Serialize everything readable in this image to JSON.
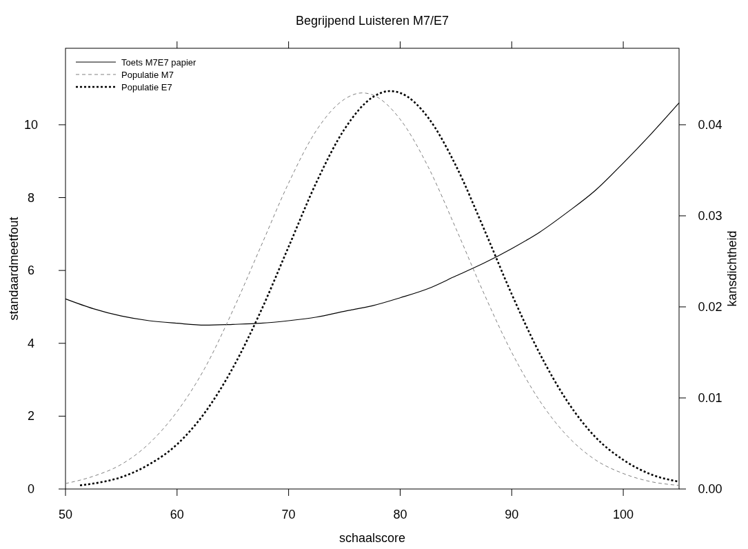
{
  "chart_data": {
    "type": "line",
    "title": "Begrijpend Luisteren M7/E7",
    "xlabel": "schaalscore",
    "ylabel": "standaardmeetfout",
    "y2label": "kansdichtheid",
    "xlim": [
      50,
      105
    ],
    "xticks": [
      50,
      60,
      70,
      80,
      90,
      100
    ],
    "ylim": [
      0,
      12.1
    ],
    "yticks": [
      0,
      2,
      4,
      6,
      8,
      10
    ],
    "y2lim": [
      0,
      0.0484
    ],
    "y2ticks": [
      {
        "value": 0,
        "label": "0.00"
      },
      {
        "value": 0.01,
        "label": "0.01"
      },
      {
        "value": 0.02,
        "label": "0.02"
      },
      {
        "value": 0.03,
        "label": "0.03"
      },
      {
        "value": 0.04,
        "label": "0.04"
      }
    ],
    "legend": "top left",
    "grid": false,
    "marker": "none",
    "series": [
      {
        "name": "Toets M7E7 papier",
        "color": "#000000",
        "line_style": "solid",
        "x": [
          50,
          52.5,
          55,
          57.5,
          60,
          62.5,
          65,
          67.5,
          70,
          72.5,
          75,
          77.5,
          80,
          82.5,
          85,
          87.5,
          90,
          92.5,
          95,
          97.5,
          100,
          102.5,
          105
        ],
        "values": [
          5.22,
          4.95,
          4.75,
          4.62,
          4.55,
          4.5,
          4.52,
          4.55,
          4.62,
          4.72,
          4.88,
          5.03,
          5.25,
          5.5,
          5.85,
          6.2,
          6.6,
          7.05,
          7.6,
          8.2,
          8.95,
          9.75,
          10.6
        ]
      },
      {
        "name": "Populatie M7",
        "color": "#808080",
        "line_style": "dashed",
        "axis": "y2",
        "x": [
          50,
          52.5,
          55,
          57.5,
          60,
          62.5,
          65,
          67.5,
          70,
          72.5,
          75,
          76.6,
          77.5,
          80,
          82.5,
          85,
          87.5,
          90,
          92.5,
          95,
          97.5,
          100,
          102.5,
          105
        ],
        "values": [
          0.0006,
          0.0014,
          0.0027,
          0.005,
          0.0085,
          0.0133,
          0.0196,
          0.0266,
          0.0336,
          0.0394,
          0.0428,
          0.0435,
          0.0433,
          0.0406,
          0.0354,
          0.0286,
          0.0215,
          0.015,
          0.0097,
          0.0058,
          0.0032,
          0.0017,
          0.0008,
          0.0004
        ]
      },
      {
        "name": "Populatie E7",
        "color": "#000000",
        "line_style": "dotted",
        "axis": "y2",
        "x": [
          51.3,
          52.5,
          55,
          57.5,
          60,
          62.5,
          65,
          67.5,
          70,
          72.5,
          75,
          77.5,
          79.1,
          80,
          82.5,
          85,
          87.5,
          90,
          92.5,
          95,
          97.5,
          100,
          102.5,
          105
        ],
        "values": [
          0.0004,
          0.0006,
          0.0013,
          0.0027,
          0.0049,
          0.0084,
          0.0133,
          0.0195,
          0.0266,
          0.0337,
          0.0395,
          0.043,
          0.0437,
          0.0435,
          0.0408,
          0.0355,
          0.0286,
          0.0214,
          0.0149,
          0.0096,
          0.0057,
          0.0032,
          0.0016,
          0.0008
        ]
      }
    ]
  }
}
